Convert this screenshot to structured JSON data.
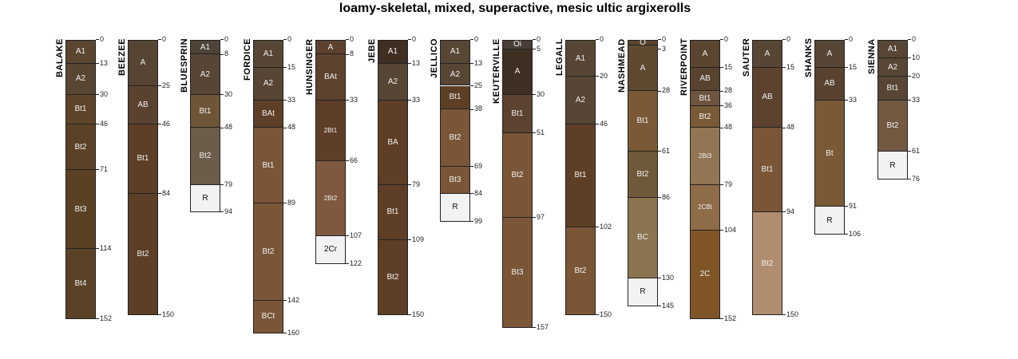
{
  "title": "loamy-skeletal, mixed, superactive, mesic ultic argixerolls",
  "profiles": [
    {
      "name": "BALAKE",
      "horizons": [
        [
          "A1",
          0,
          13,
          "#5a4530"
        ],
        [
          "A2",
          13,
          30,
          "#574634"
        ],
        [
          "Bt1",
          30,
          46,
          "#5e4428"
        ],
        [
          "Bt2",
          46,
          71,
          "#5a4226"
        ],
        [
          "Bt3",
          71,
          114,
          "#5b4124"
        ],
        [
          "Bt4",
          114,
          152,
          "#5a4226"
        ]
      ]
    },
    {
      "name": "BEEZEE",
      "horizons": [
        [
          "A",
          0,
          25,
          "#564535"
        ],
        [
          "AB",
          25,
          46,
          "#5a4230"
        ],
        [
          "Bt1",
          46,
          84,
          "#5c3f26"
        ],
        [
          "Bt2",
          84,
          150,
          "#5c3f26"
        ]
      ]
    },
    {
      "name": "BLUESPRIN",
      "horizons": [
        [
          "A1",
          0,
          8,
          "#4f4438"
        ],
        [
          "A2",
          8,
          30,
          "#574535"
        ],
        [
          "Bt1",
          30,
          48,
          "#6e5538"
        ],
        [
          "Bt2",
          48,
          79,
          "#6c5c4a"
        ],
        [
          "R",
          79,
          94,
          "#f2f2f2"
        ]
      ]
    },
    {
      "name": "FORDICE",
      "horizons": [
        [
          "A1",
          0,
          15,
          "#574635"
        ],
        [
          "A2",
          15,
          33,
          "#574635"
        ],
        [
          "BAt",
          33,
          48,
          "#5e3f27"
        ],
        [
          "Bt1",
          48,
          89,
          "#7a5637"
        ],
        [
          "Bt2",
          89,
          142,
          "#7a5637"
        ],
        [
          "BCt",
          142,
          160,
          "#7a5637"
        ]
      ]
    },
    {
      "name": "HUNSINGER",
      "horizons": [
        [
          "A",
          0,
          8,
          "#5e4230"
        ],
        [
          "BAt",
          8,
          33,
          "#5e4230"
        ],
        [
          "2Bt1",
          33,
          66,
          "#5e3e28"
        ],
        [
          "2Bt2",
          66,
          107,
          "#7f5840"
        ],
        [
          "2Cr",
          107,
          122,
          "#f2f2f2"
        ]
      ]
    },
    {
      "name": "JEBE",
      "horizons": [
        [
          "A1",
          0,
          13,
          "#3e2f22"
        ],
        [
          "A2",
          13,
          33,
          "#574635"
        ],
        [
          "BA",
          33,
          79,
          "#5e3f26"
        ],
        [
          "Bt1",
          79,
          109,
          "#5e3f26"
        ],
        [
          "Bt2",
          109,
          150,
          "#5e3f26"
        ]
      ]
    },
    {
      "name": "JELLICO",
      "horizons": [
        [
          "A1",
          0,
          13,
          "#574635"
        ],
        [
          "A2",
          13,
          25,
          "#574635"
        ],
        [
          "Bt1",
          25,
          38,
          "#5e3f26"
        ],
        [
          "Bt2",
          38,
          69,
          "#7a5637"
        ],
        [
          "Bt3",
          69,
          84,
          "#7a5637"
        ],
        [
          "R",
          84,
          99,
          "#f2f2f2"
        ]
      ]
    },
    {
      "name": "KEUTERVILLE",
      "horizons": [
        [
          "Oi",
          0,
          5,
          "#4b3e36"
        ],
        [
          "A",
          5,
          30,
          "#3e2f22"
        ],
        [
          "Bt1",
          30,
          51,
          "#5c4230"
        ],
        [
          "Bt2",
          51,
          97,
          "#7a5637"
        ],
        [
          "Bt3",
          97,
          157,
          "#7a5637"
        ]
      ]
    },
    {
      "name": "LEGALL",
      "horizons": [
        [
          "A1",
          0,
          20,
          "#574635"
        ],
        [
          "A2",
          20,
          46,
          "#574635"
        ],
        [
          "Bt1",
          46,
          102,
          "#5e3f26"
        ],
        [
          "Bt2",
          102,
          150,
          "#7a5637"
        ]
      ]
    },
    {
      "name": "NASHMEAD",
      "horizons": [
        [
          "O",
          0,
          3,
          "#5a4530"
        ],
        [
          "A",
          3,
          28,
          "#5e4a30"
        ],
        [
          "Bt1",
          28,
          61,
          "#7a5a36"
        ],
        [
          "Bt2",
          61,
          86,
          "#6e5a38"
        ],
        [
          "BC",
          86,
          130,
          "#8b7450"
        ],
        [
          "R",
          130,
          145,
          "#f2f2f2"
        ]
      ]
    },
    {
      "name": "RIVERPOINT",
      "horizons": [
        [
          "A",
          0,
          15,
          "#5a4530"
        ],
        [
          "AB",
          15,
          28,
          "#574330"
        ],
        [
          "Bt1",
          28,
          36,
          "#6e5540"
        ],
        [
          "Bt2",
          36,
          48,
          "#785a36"
        ],
        [
          "2Bt3",
          48,
          79,
          "#927552"
        ],
        [
          "2CBt",
          79,
          104,
          "#8e6c48"
        ],
        [
          "2C",
          104,
          152,
          "#7f5527"
        ]
      ]
    },
    {
      "name": "SAUTER",
      "horizons": [
        [
          "A",
          0,
          15,
          "#574635"
        ],
        [
          "AB",
          15,
          48,
          "#5e4230"
        ],
        [
          "Bt1",
          48,
          94,
          "#7a5637"
        ],
        [
          "Bt2",
          94,
          150,
          "#b08d6e"
        ]
      ]
    },
    {
      "name": "SHANKS",
      "horizons": [
        [
          "A",
          0,
          15,
          "#574635"
        ],
        [
          "AB",
          15,
          33,
          "#574330"
        ],
        [
          "Bt",
          33,
          91,
          "#7a5a36"
        ],
        [
          "R",
          91,
          106,
          "#f2f2f2"
        ]
      ]
    },
    {
      "name": "SIENNA",
      "horizons": [
        [
          "A1",
          0,
          10,
          "#574635"
        ],
        [
          "A2",
          10,
          20,
          "#574635"
        ],
        [
          "Bt1",
          20,
          33,
          "#574635"
        ],
        [
          "Bt2",
          33,
          61,
          "#735842"
        ],
        [
          "R",
          61,
          76,
          "#f2f2f2"
        ]
      ]
    }
  ]
}
